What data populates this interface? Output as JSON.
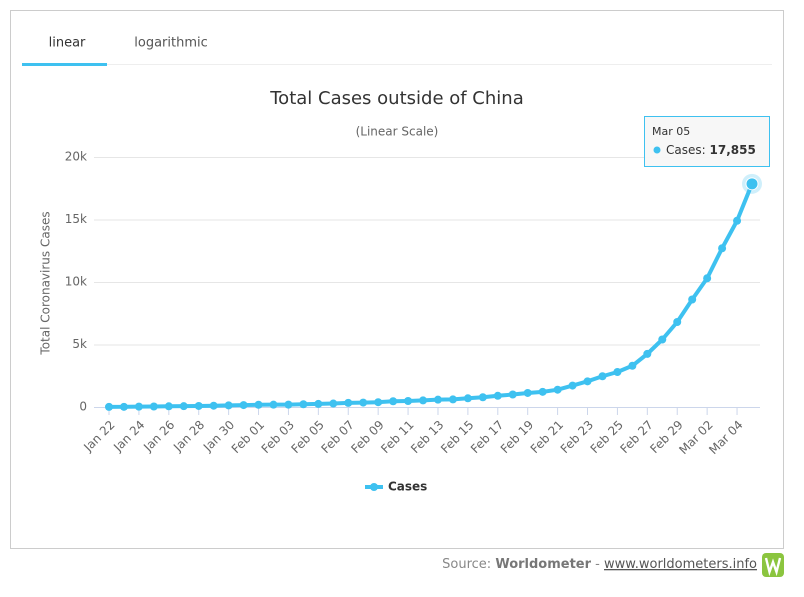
{
  "tabs": [
    "linear",
    "logarithmic"
  ],
  "chart_data": {
    "type": "line",
    "title": "Total Cases outside of China",
    "subtitle": "(Linear Scale)",
    "y_label": "Total Coronavirus Cases",
    "categories": [
      "Jan 22",
      null,
      "Jan 24",
      null,
      "Jan 26",
      null,
      "Jan 28",
      null,
      "Jan 30",
      null,
      "Feb 01",
      null,
      "Feb 03",
      null,
      "Feb 05",
      null,
      "Feb 07",
      null,
      "Feb 09",
      null,
      "Feb 11",
      null,
      "Feb 13",
      null,
      "Feb 15",
      null,
      "Feb 17",
      null,
      "Feb 19",
      null,
      "Feb 21",
      null,
      "Feb 23",
      null,
      "Feb 25",
      null,
      "Feb 27",
      null,
      "Feb 29",
      null,
      "Mar 02",
      null,
      "Mar 04",
      null
    ],
    "series": [
      {
        "name": "Cases",
        "color": "#3ec1f0",
        "values": [
          9,
          15,
          30,
          40,
          56,
          66,
          84,
          102,
          131,
          155,
          179,
          186,
          190,
          221,
          248,
          278,
          330,
          354,
          382,
          461,
          481,
          526,
          587,
          608,
          697,
          781,
          896,
          999,
          1124,
          1212,
          1385,
          1715,
          2055,
          2459,
          2800,
          3300,
          4250,
          5400,
          6800,
          8600,
          10300,
          12700,
          14900,
          17855
        ]
      }
    ],
    "ylim": [
      0,
      20000
    ],
    "yticks": [
      0,
      {
        "value": 5000,
        "label": "5k"
      },
      {
        "value": 10000,
        "label": "10k"
      },
      {
        "value": 15000,
        "label": "15k"
      },
      {
        "value": 20000,
        "label": "20k"
      }
    ],
    "grid": true,
    "tooltip": {
      "category": "Mar 05",
      "label": "Cases:",
      "value_label": "17,855"
    }
  },
  "source": {
    "prefix": "Source:",
    "name": "Worldometer",
    "separator": "-",
    "link": "www.worldometers.info"
  }
}
